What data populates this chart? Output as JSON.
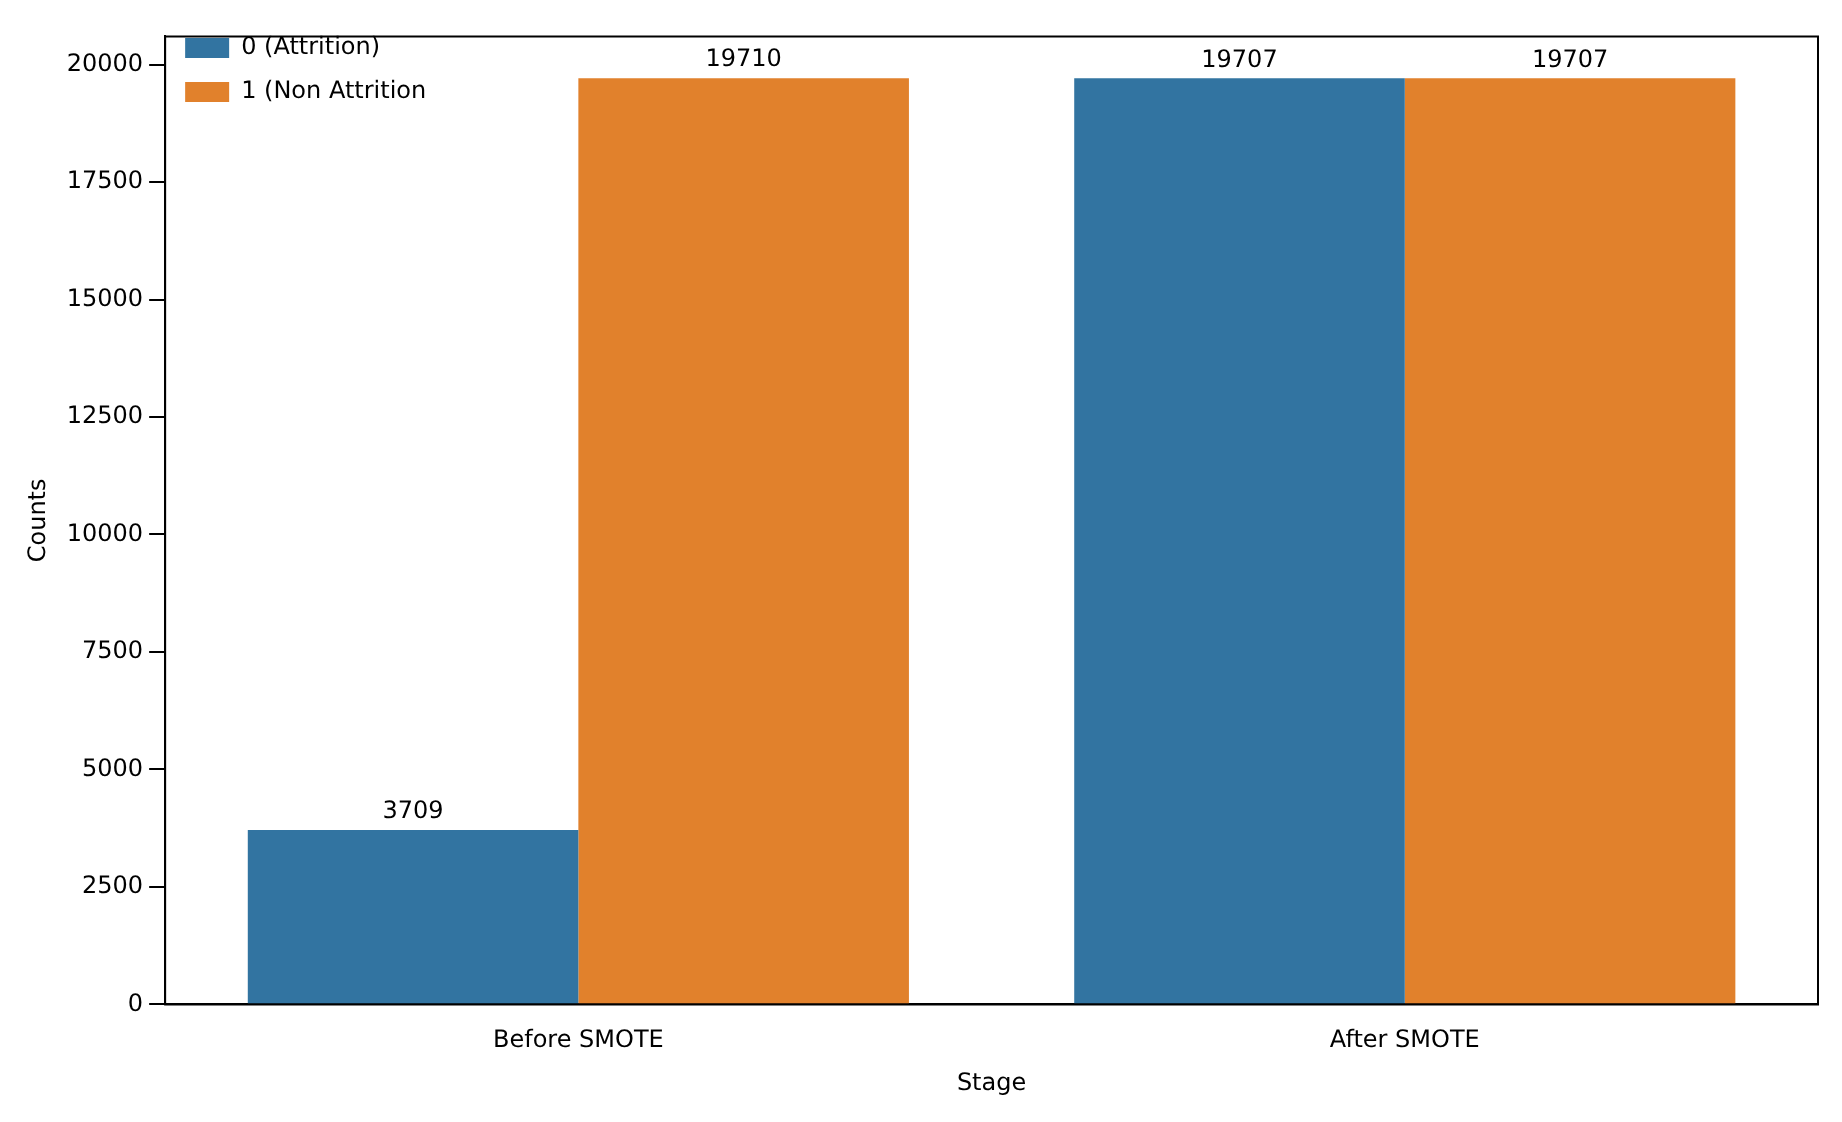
{
  "chart_data": {
    "type": "bar",
    "xlabel": "Stage",
    "ylabel": "Counts",
    "categories": [
      "Before SMOTE",
      "After SMOTE"
    ],
    "series": [
      {
        "name": "0 (Attrition)",
        "color": "#3274a1",
        "values": [
          3709,
          19707
        ]
      },
      {
        "name": "1 (Non Attrition",
        "color": "#e1812c",
        "values": [
          19710,
          19707
        ]
      }
    ],
    "ylim": [
      0,
      20600
    ],
    "yticks": [
      0,
      2500,
      5000,
      7500,
      10000,
      12500,
      15000,
      17500,
      20000
    ],
    "grid": false,
    "legend": "top left",
    "data_labels": true
  }
}
